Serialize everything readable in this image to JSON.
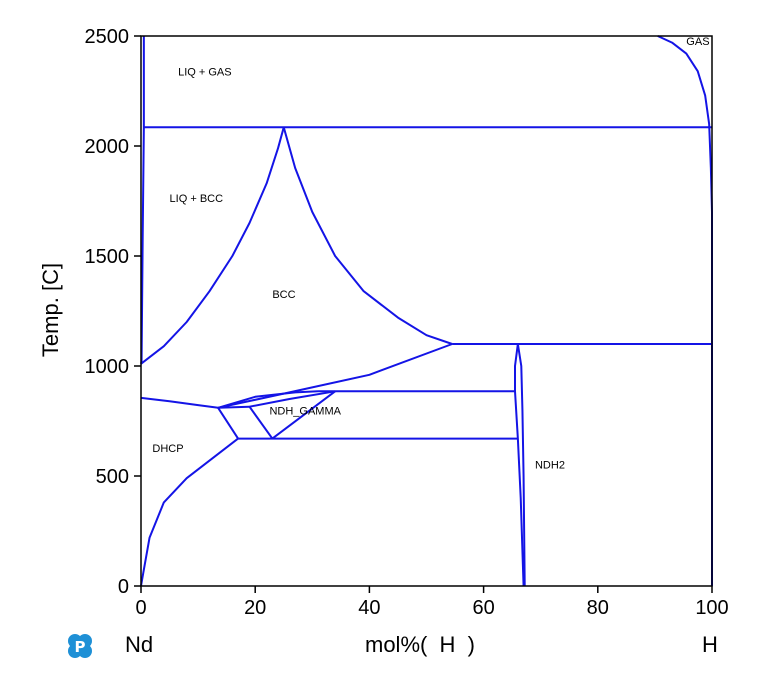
{
  "chart_data": {
    "type": "line",
    "title": "",
    "xlabel": "",
    "ylabel": "Temp.  [C]",
    "xlim": [
      0,
      100
    ],
    "ylim": [
      0,
      2500
    ],
    "xticks": [
      0,
      20,
      40,
      60,
      80,
      100
    ],
    "yticks": [
      0,
      500,
      1000,
      1500,
      2000,
      2500
    ],
    "grid": false,
    "line_color": "#1414e6",
    "element_left": "Nd",
    "element_right": "H",
    "composition_label": "mol%(  H  )",
    "phase_labels": [
      {
        "text": "LIQ + GAS",
        "x": 6.5,
        "y": 2320
      },
      {
        "text": "GAS",
        "x": 95.5,
        "y": 2460
      },
      {
        "text": "LIQ + BCC",
        "x": 5,
        "y": 1745
      },
      {
        "text": "BCC",
        "x": 23,
        "y": 1310
      },
      {
        "text": "NDH_GAMMA",
        "x": 22.5,
        "y": 780
      },
      {
        "text": "DHCP",
        "x": 2,
        "y": 610
      },
      {
        "text": "NDH2",
        "x": 69,
        "y": 535
      }
    ],
    "series": [
      {
        "values": [
          [
            0.5,
            2500
          ],
          [
            0.5,
            2085
          ],
          [
            0.3,
            1600
          ],
          [
            0.1,
            1020
          ],
          [
            0,
            1010
          ]
        ]
      },
      {
        "values": [
          [
            0.5,
            2085
          ],
          [
            100,
            2085
          ]
        ]
      },
      {
        "values": [
          [
            90.5,
            2500
          ],
          [
            93,
            2470
          ],
          [
            95.5,
            2420
          ],
          [
            97.5,
            2340
          ],
          [
            98.8,
            2230
          ],
          [
            99.5,
            2100
          ],
          [
            99.8,
            1900
          ],
          [
            100,
            1700
          ],
          [
            100,
            0
          ]
        ]
      },
      {
        "values": [
          [
            0,
            1010
          ],
          [
            4,
            1090
          ],
          [
            8,
            1200
          ],
          [
            12,
            1340
          ],
          [
            16,
            1500
          ],
          [
            19,
            1650
          ],
          [
            22,
            1830
          ],
          [
            24,
            1990
          ],
          [
            25,
            2085
          ]
        ]
      },
      {
        "values": [
          [
            25,
            2085
          ],
          [
            27,
            1900
          ],
          [
            30,
            1700
          ],
          [
            34,
            1500
          ],
          [
            39,
            1340
          ],
          [
            45,
            1220
          ],
          [
            50,
            1140
          ],
          [
            54.5,
            1100
          ]
        ]
      },
      {
        "values": [
          [
            54.5,
            1100
          ],
          [
            100,
            1100
          ]
        ]
      },
      {
        "values": [
          [
            13.5,
            810
          ],
          [
            26,
            880
          ],
          [
            40,
            960
          ],
          [
            54.5,
            1100
          ]
        ]
      },
      {
        "values": [
          [
            0,
            855
          ],
          [
            5,
            840
          ],
          [
            10,
            822
          ],
          [
            13.5,
            810
          ]
        ]
      },
      {
        "values": [
          [
            13.5,
            810
          ],
          [
            20,
            860
          ],
          [
            27,
            880
          ],
          [
            31,
            885
          ]
        ]
      },
      {
        "values": [
          [
            31,
            885
          ],
          [
            65.5,
            885
          ]
        ]
      },
      {
        "values": [
          [
            13.5,
            810
          ],
          [
            19,
            815
          ]
        ]
      },
      {
        "values": [
          [
            19,
            815
          ],
          [
            23,
            670
          ]
        ]
      },
      {
        "values": [
          [
            19,
            815
          ],
          [
            26,
            850
          ],
          [
            34,
            885
          ]
        ]
      },
      {
        "values": [
          [
            23,
            670
          ],
          [
            34,
            885
          ]
        ]
      },
      {
        "values": [
          [
            17,
            670
          ],
          [
            66,
            670
          ]
        ]
      },
      {
        "values": [
          [
            13.5,
            810
          ],
          [
            17,
            670
          ]
        ]
      },
      {
        "values": [
          [
            17,
            670
          ],
          [
            12,
            570
          ],
          [
            8,
            490
          ],
          [
            4,
            380
          ],
          [
            1.5,
            220
          ],
          [
            0.4,
            60
          ],
          [
            0,
            0
          ]
        ]
      },
      {
        "values": [
          [
            66,
            1100
          ],
          [
            65.5,
            1000
          ],
          [
            65.5,
            885
          ],
          [
            66,
            670
          ],
          [
            66.5,
            400
          ],
          [
            67,
            0
          ]
        ]
      },
      {
        "values": [
          [
            66,
            1100
          ],
          [
            66.6,
            1000
          ],
          [
            66.8,
            800
          ],
          [
            67,
            500
          ],
          [
            67.2,
            0
          ]
        ]
      }
    ]
  },
  "axis_labels": {
    "y_title": "Temp.  [C]",
    "bottom_left": "Nd",
    "bottom_center": "mol%(  H  )",
    "bottom_right": "H"
  },
  "logo": {
    "icon": "p-logo-icon",
    "letter": "P",
    "color": "#1e90d6"
  }
}
